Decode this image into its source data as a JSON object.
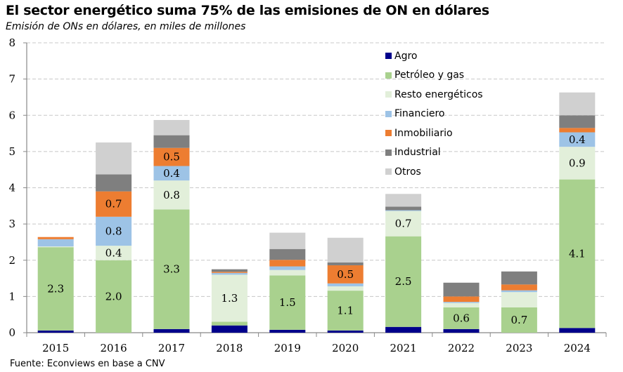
{
  "title": "El sector energético suma 75% de las emisiones de ON en dólares",
  "subtitle": "Emisión de ONs en dólares, en miles de millones",
  "source": "Fuente: Econviews en base a CNV",
  "chart_data": {
    "type": "bar",
    "stacked": true,
    "title": "El sector energético suma 75% de las emisiones de ON en dólares",
    "subtitle": "Emisión de ONs en dólares, en miles de millones",
    "xlabel": "",
    "ylabel": "",
    "ylim": [
      0,
      8
    ],
    "yticks": [
      0,
      1,
      2,
      3,
      4,
      5,
      6,
      7,
      8
    ],
    "grid": true,
    "legend_position": "top-right",
    "categories": [
      "2015",
      "2016",
      "2017",
      "2018",
      "2019",
      "2020",
      "2021",
      "2022",
      "2023",
      "2024"
    ],
    "series": [
      {
        "name": "Agro",
        "color": "#00008B",
        "values": [
          0.06,
          0.0,
          0.1,
          0.2,
          0.08,
          0.06,
          0.16,
          0.1,
          0.0,
          0.13
        ],
        "labels": [
          null,
          null,
          null,
          null,
          null,
          null,
          null,
          null,
          null,
          null
        ]
      },
      {
        "name": "Petróleo y gas",
        "color": "#A9D18E",
        "values": [
          2.3,
          2.0,
          3.3,
          0.1,
          1.5,
          1.1,
          2.5,
          0.6,
          0.7,
          4.1
        ],
        "labels": [
          "2.3",
          "2.0",
          "3.3",
          null,
          "1.5",
          "1.1",
          "2.5",
          "0.6",
          "0.7",
          "4.1"
        ]
      },
      {
        "name": "Resto energéticos",
        "color": "#E2EFDA",
        "values": [
          0.02,
          0.4,
          0.8,
          1.3,
          0.15,
          0.12,
          0.7,
          0.12,
          0.42,
          0.9
        ],
        "labels": [
          null,
          "0.4",
          "0.8",
          "1.3",
          null,
          null,
          "0.7",
          null,
          null,
          "0.9"
        ]
      },
      {
        "name": "Financiero",
        "color": "#9DC3E6",
        "values": [
          0.2,
          0.8,
          0.4,
          0.05,
          0.1,
          0.08,
          0.02,
          0.03,
          0.05,
          0.4
        ],
        "labels": [
          null,
          "0.8",
          "0.4",
          null,
          null,
          null,
          null,
          null,
          null,
          "0.4"
        ]
      },
      {
        "name": "Inmobiliario",
        "color": "#ED7D31",
        "values": [
          0.06,
          0.7,
          0.5,
          0.03,
          0.18,
          0.5,
          0.0,
          0.15,
          0.16,
          0.12
        ],
        "labels": [
          null,
          "0.7",
          "0.5",
          null,
          null,
          "0.5",
          null,
          null,
          null,
          null
        ]
      },
      {
        "name": "Industrial",
        "color": "#7F7F7F",
        "values": [
          0.0,
          0.47,
          0.35,
          0.07,
          0.3,
          0.08,
          0.1,
          0.38,
          0.36,
          0.35
        ],
        "labels": [
          null,
          null,
          null,
          null,
          null,
          null,
          null,
          null,
          null,
          null
        ]
      },
      {
        "name": "Otros",
        "color": "#D0D0D0",
        "values": [
          0.0,
          0.88,
          0.42,
          0.0,
          0.45,
          0.68,
          0.35,
          0.0,
          0.0,
          0.63
        ],
        "labels": [
          null,
          null,
          null,
          null,
          null,
          null,
          null,
          null,
          null,
          null
        ]
      }
    ]
  }
}
